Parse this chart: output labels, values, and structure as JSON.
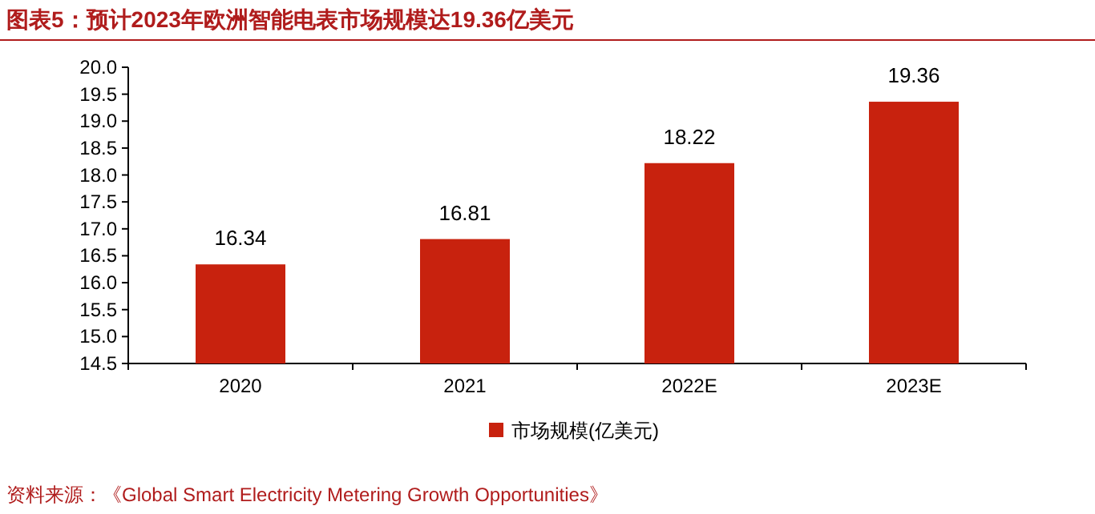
{
  "chart_data": {
    "type": "bar",
    "title": "图表5：预计2023年欧洲智能电表市场规模达19.36亿美元",
    "categories": [
      "2020",
      "2021",
      "2022E",
      "2023E"
    ],
    "series": [
      {
        "name": "市场规模(亿美元)",
        "color": "#c8220e",
        "values": [
          16.34,
          16.81,
          18.22,
          19.36
        ]
      }
    ],
    "ylim": [
      14.5,
      20.0
    ],
    "yticks": [
      {
        "value": 14.5,
        "label": "14.5"
      },
      {
        "value": 15,
        "label": "15.0"
      },
      {
        "value": 15.5,
        "label": "15.5"
      },
      {
        "value": 16,
        "label": "16.0"
      },
      {
        "value": 16.5,
        "label": "16.5"
      },
      {
        "value": 17,
        "label": "17.0"
      },
      {
        "value": 17.5,
        "label": "17.5"
      },
      {
        "value": 18,
        "label": "18.0"
      },
      {
        "value": 18.5,
        "label": "18.5"
      },
      {
        "value": 19,
        "label": "19.0"
      },
      {
        "value": 19.5,
        "label": "19.5"
      },
      {
        "value": 20,
        "label": "20.0"
      }
    ],
    "data_labels": true,
    "legend": "bottom",
    "grid": false,
    "annotations": [
      "资料来源：《Global Smart Electricity Metering Growth Opportunities》"
    ]
  }
}
